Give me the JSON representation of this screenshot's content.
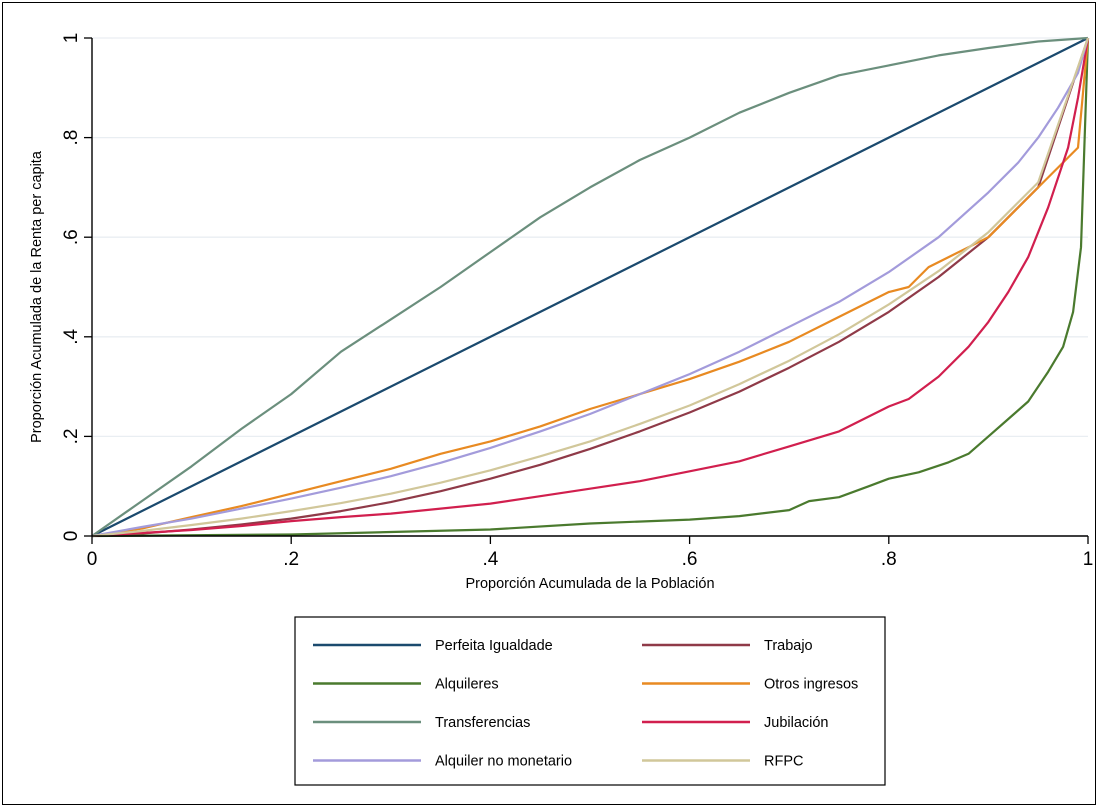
{
  "chart_data": {
    "type": "line",
    "xlabel": "Proporción Acumulada de la Población",
    "ylabel": "Proporción Acumulada de la Renta per capita",
    "xlim": [
      0,
      1
    ],
    "ylim": [
      0,
      1
    ],
    "x_ticks": [
      {
        "v": 0,
        "label": "0"
      },
      {
        "v": 0.2,
        "label": ".2"
      },
      {
        "v": 0.4,
        "label": ".4"
      },
      {
        "v": 0.6,
        "label": ".6"
      },
      {
        "v": 0.8,
        "label": ".8"
      },
      {
        "v": 1,
        "label": "1"
      }
    ],
    "y_ticks": [
      {
        "v": 0,
        "label": "0"
      },
      {
        "v": 0.2,
        "label": ".2"
      },
      {
        "v": 0.4,
        "label": ".4"
      },
      {
        "v": 0.6,
        "label": ".6"
      },
      {
        "v": 0.8,
        "label": ".8"
      },
      {
        "v": 1,
        "label": "1"
      }
    ],
    "grid": true,
    "legend_position": "bottom",
    "series": [
      {
        "name": "Perfeita Igualdade",
        "color": "#1b4a6e",
        "x": [
          0,
          1
        ],
        "y": [
          0,
          1
        ]
      },
      {
        "name": "Trabajo",
        "color": "#8f3a48",
        "x": [
          0,
          0.05,
          0.1,
          0.15,
          0.2,
          0.25,
          0.3,
          0.35,
          0.4,
          0.45,
          0.5,
          0.55,
          0.6,
          0.65,
          0.7,
          0.75,
          0.8,
          0.85,
          0.9,
          0.95,
          1
        ],
        "y": [
          0,
          0.005,
          0.013,
          0.023,
          0.035,
          0.05,
          0.068,
          0.09,
          0.115,
          0.143,
          0.175,
          0.21,
          0.248,
          0.29,
          0.338,
          0.39,
          0.45,
          0.52,
          0.6,
          0.7,
          1
        ]
      },
      {
        "name": "Alquileres",
        "color": "#4a7a2e",
        "x": [
          0,
          0.2,
          0.3,
          0.4,
          0.5,
          0.6,
          0.65,
          0.7,
          0.72,
          0.75,
          0.78,
          0.8,
          0.83,
          0.86,
          0.88,
          0.9,
          0.92,
          0.94,
          0.96,
          0.975,
          0.985,
          0.993,
          1
        ],
        "y": [
          0,
          0.003,
          0.008,
          0.013,
          0.025,
          0.033,
          0.04,
          0.052,
          0.07,
          0.078,
          0.1,
          0.115,
          0.128,
          0.148,
          0.165,
          0.2,
          0.235,
          0.27,
          0.33,
          0.38,
          0.45,
          0.58,
          1
        ]
      },
      {
        "name": "Otros ingresos",
        "color": "#e88a22",
        "x": [
          0,
          0.05,
          0.1,
          0.15,
          0.2,
          0.25,
          0.3,
          0.35,
          0.4,
          0.45,
          0.5,
          0.55,
          0.6,
          0.65,
          0.7,
          0.75,
          0.8,
          0.82,
          0.84,
          0.86,
          0.88,
          0.9,
          0.92,
          0.94,
          0.96,
          0.98,
          0.99,
          1
        ],
        "y": [
          0,
          0.015,
          0.038,
          0.06,
          0.085,
          0.11,
          0.135,
          0.165,
          0.19,
          0.22,
          0.255,
          0.285,
          0.315,
          0.35,
          0.39,
          0.44,
          0.49,
          0.5,
          0.54,
          0.56,
          0.58,
          0.6,
          0.64,
          0.68,
          0.72,
          0.76,
          0.78,
          1
        ]
      },
      {
        "name": "Transferencias",
        "color": "#6b8f7d",
        "x": [
          0,
          0.05,
          0.1,
          0.15,
          0.2,
          0.25,
          0.3,
          0.35,
          0.4,
          0.45,
          0.5,
          0.55,
          0.6,
          0.65,
          0.7,
          0.75,
          0.8,
          0.85,
          0.9,
          0.95,
          1
        ],
        "y": [
          0,
          0.07,
          0.14,
          0.215,
          0.285,
          0.37,
          0.435,
          0.5,
          0.57,
          0.64,
          0.7,
          0.755,
          0.8,
          0.85,
          0.89,
          0.925,
          0.945,
          0.965,
          0.98,
          0.993,
          1
        ]
      },
      {
        "name": "Jubilación",
        "color": "#d11f4e",
        "x": [
          0,
          0.1,
          0.15,
          0.2,
          0.25,
          0.3,
          0.35,
          0.4,
          0.45,
          0.5,
          0.55,
          0.6,
          0.65,
          0.7,
          0.75,
          0.8,
          0.82,
          0.85,
          0.88,
          0.9,
          0.92,
          0.94,
          0.96,
          0.98,
          0.99,
          1
        ],
        "y": [
          0,
          0.012,
          0.02,
          0.03,
          0.038,
          0.045,
          0.055,
          0.065,
          0.08,
          0.095,
          0.11,
          0.13,
          0.15,
          0.18,
          0.21,
          0.26,
          0.275,
          0.32,
          0.38,
          0.43,
          0.49,
          0.56,
          0.66,
          0.78,
          0.88,
          1
        ]
      },
      {
        "name": "Alquiler no monetario",
        "color": "#a39bdb",
        "x": [
          0,
          0.05,
          0.1,
          0.15,
          0.2,
          0.25,
          0.3,
          0.35,
          0.4,
          0.45,
          0.5,
          0.55,
          0.6,
          0.65,
          0.7,
          0.75,
          0.8,
          0.85,
          0.9,
          0.93,
          0.95,
          0.97,
          0.99,
          1
        ],
        "y": [
          0,
          0.018,
          0.035,
          0.055,
          0.075,
          0.097,
          0.12,
          0.147,
          0.177,
          0.21,
          0.245,
          0.285,
          0.325,
          0.37,
          0.42,
          0.47,
          0.53,
          0.6,
          0.69,
          0.75,
          0.8,
          0.86,
          0.93,
          1
        ]
      },
      {
        "name": "RFPC",
        "color": "#d1c79a",
        "x": [
          0,
          0.05,
          0.1,
          0.15,
          0.2,
          0.25,
          0.3,
          0.35,
          0.4,
          0.45,
          0.5,
          0.55,
          0.6,
          0.65,
          0.7,
          0.75,
          0.8,
          0.85,
          0.9,
          0.95,
          1
        ],
        "y": [
          0,
          0.01,
          0.022,
          0.035,
          0.05,
          0.066,
          0.085,
          0.107,
          0.132,
          0.16,
          0.19,
          0.225,
          0.262,
          0.305,
          0.352,
          0.405,
          0.465,
          0.532,
          0.61,
          0.71,
          1
        ]
      }
    ]
  }
}
